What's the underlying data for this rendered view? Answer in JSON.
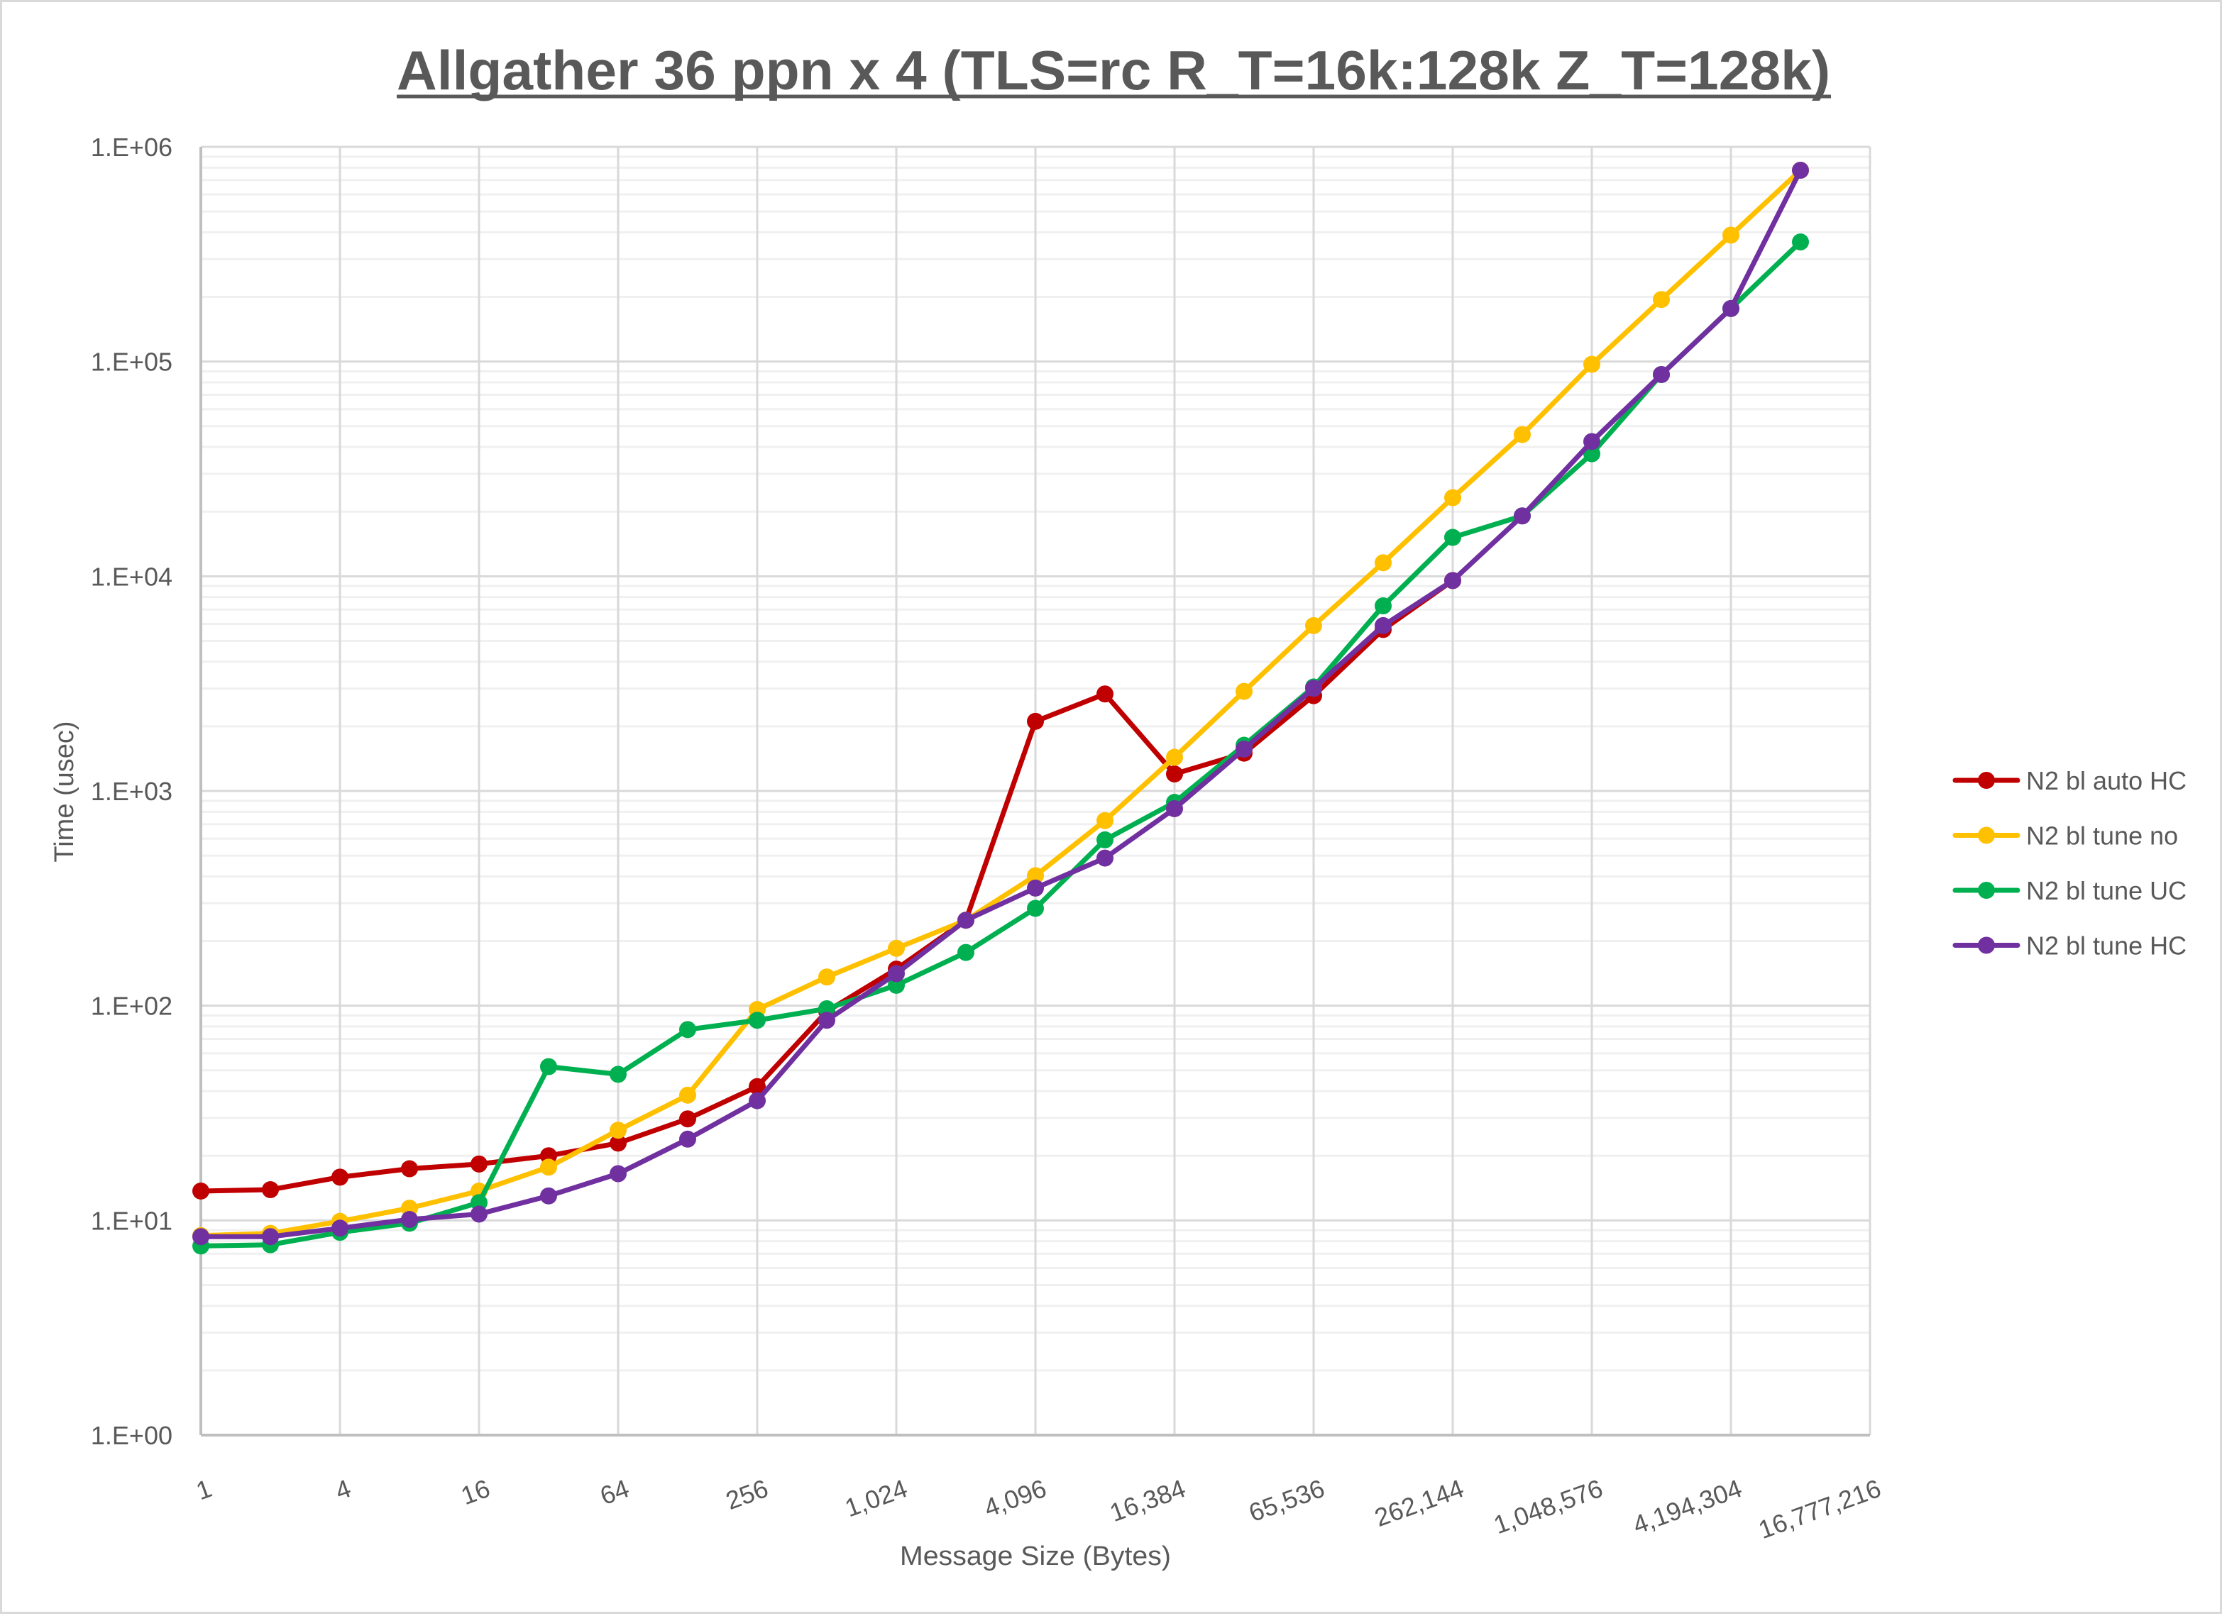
{
  "chart_data": {
    "type": "line",
    "title": "Allgather 36 ppn x 4 (TLS=rc R_T=16k:128k Z_T=128k)",
    "xlabel": "Message Size (Bytes)",
    "ylabel": "Time (usec)",
    "xscale": "log2",
    "yscale": "log10",
    "ylim": [
      1,
      1000000
    ],
    "xlim": [
      1,
      16777216
    ],
    "grid": true,
    "legend_position": "right",
    "x_tick_labels": [
      "1",
      "4",
      "16",
      "64",
      "256",
      "1,024",
      "4,096",
      "16,384",
      "65,536",
      "262,144",
      "1,048,576",
      "4,194,304",
      "16,777,216"
    ],
    "y_tick_labels": [
      "1.E+00",
      "1.E+01",
      "1.E+02",
      "1.E+03",
      "1.E+04",
      "1.E+05",
      "1.E+06"
    ],
    "x": [
      1,
      2,
      4,
      8,
      16,
      32,
      64,
      128,
      256,
      512,
      1024,
      2048,
      4096,
      8192,
      16384,
      32768,
      65536,
      131072,
      262144,
      524288,
      1048576,
      2097152,
      4194304,
      8388608
    ],
    "series": [
      {
        "name": "N2 bl auto HC",
        "color": "#c00000",
        "values": [
          13.7,
          13.9,
          15.9,
          17.4,
          18.3,
          20.0,
          22.9,
          29.7,
          42,
          94,
          148,
          250,
          2110,
          2830,
          1200,
          1500,
          2780,
          5650,
          9550,
          null,
          null,
          null,
          null,
          null
        ]
      },
      {
        "name": "N2 bl tune no",
        "color": "#ffc000",
        "values": [
          8.5,
          8.7,
          9.9,
          11.4,
          13.7,
          17.7,
          26.3,
          38.3,
          96,
          136,
          185,
          250,
          403,
          728,
          1435,
          2910,
          5890,
          11560,
          23230,
          45700,
          97100,
          194500,
          388000,
          778000
        ]
      },
      {
        "name": "N2 bl tune UC",
        "color": "#00b050",
        "values": [
          7.6,
          7.7,
          8.8,
          9.7,
          12.1,
          52,
          47.9,
          77.4,
          85.5,
          96.8,
          124.5,
          177,
          284,
          592,
          885,
          1633,
          3050,
          7280,
          15170,
          19100,
          37200,
          87000,
          176600,
          360600
        ]
      },
      {
        "name": "N2 bl tune HC",
        "color": "#7030a0",
        "values": [
          8.4,
          8.4,
          9.2,
          10.1,
          10.7,
          13.0,
          16.5,
          23.9,
          36.1,
          85.5,
          141,
          250,
          353,
          487,
          827,
          1566,
          3006,
          5890,
          9550,
          19100,
          42400,
          87000,
          176600,
          778000
        ]
      }
    ]
  },
  "legend": {
    "items": [
      {
        "label": "N2 bl auto HC",
        "color": "#c00000"
      },
      {
        "label": "N2 bl tune no",
        "color": "#ffc000"
      },
      {
        "label": "N2 bl tune UC",
        "color": "#00b050"
      },
      {
        "label": "N2 bl tune HC",
        "color": "#7030a0"
      }
    ]
  }
}
